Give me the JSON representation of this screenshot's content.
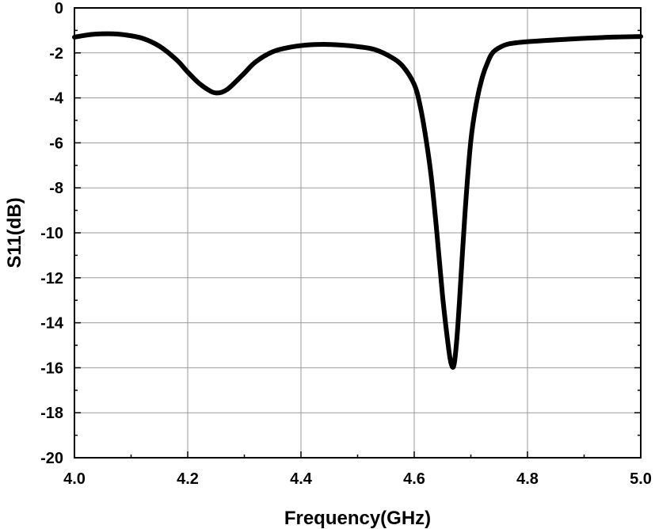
{
  "chart_data": {
    "type": "line",
    "title": "",
    "xlabel": "Frequency(GHz)",
    "ylabel": "S11(dB)",
    "xlim": [
      4.0,
      5.0
    ],
    "ylim": [
      -20,
      0
    ],
    "xticks": [
      "4.0",
      "4.2",
      "4.4",
      "4.6",
      "4.8",
      "5.0"
    ],
    "yticks": [
      "0",
      "-2",
      "-4",
      "-6",
      "-8",
      "-10",
      "-12",
      "-14",
      "-16",
      "-18",
      "-20"
    ],
    "grid": true,
    "line_color": "#000000",
    "series": [
      {
        "x": [
          4.0,
          4.03,
          4.06,
          4.09,
          4.12,
          4.15,
          4.18,
          4.2,
          4.22,
          4.24,
          4.25,
          4.26,
          4.27,
          4.28,
          4.3,
          4.32,
          4.35,
          4.38,
          4.41,
          4.44,
          4.47,
          4.5,
          4.53,
          4.56,
          4.58,
          4.6,
          4.61,
          4.62,
          4.63,
          4.64,
          4.65,
          4.66,
          4.665,
          4.67,
          4.675,
          4.68,
          4.69,
          4.7,
          4.71,
          4.72,
          4.73,
          4.74,
          4.76,
          4.78,
          4.8,
          4.85,
          4.9,
          4.95,
          5.0
        ],
        "y": [
          -1.3,
          -1.18,
          -1.15,
          -1.2,
          -1.35,
          -1.7,
          -2.3,
          -2.85,
          -3.35,
          -3.7,
          -3.78,
          -3.75,
          -3.62,
          -3.4,
          -2.9,
          -2.4,
          -1.95,
          -1.75,
          -1.65,
          -1.62,
          -1.65,
          -1.72,
          -1.85,
          -2.2,
          -2.6,
          -3.4,
          -4.3,
          -5.7,
          -7.5,
          -10.0,
          -12.8,
          -15.0,
          -15.8,
          -15.9,
          -14.8,
          -13.0,
          -9.0,
          -5.9,
          -4.2,
          -3.1,
          -2.4,
          -1.95,
          -1.65,
          -1.55,
          -1.5,
          -1.42,
          -1.35,
          -1.3,
          -1.27
        ]
      }
    ]
  }
}
